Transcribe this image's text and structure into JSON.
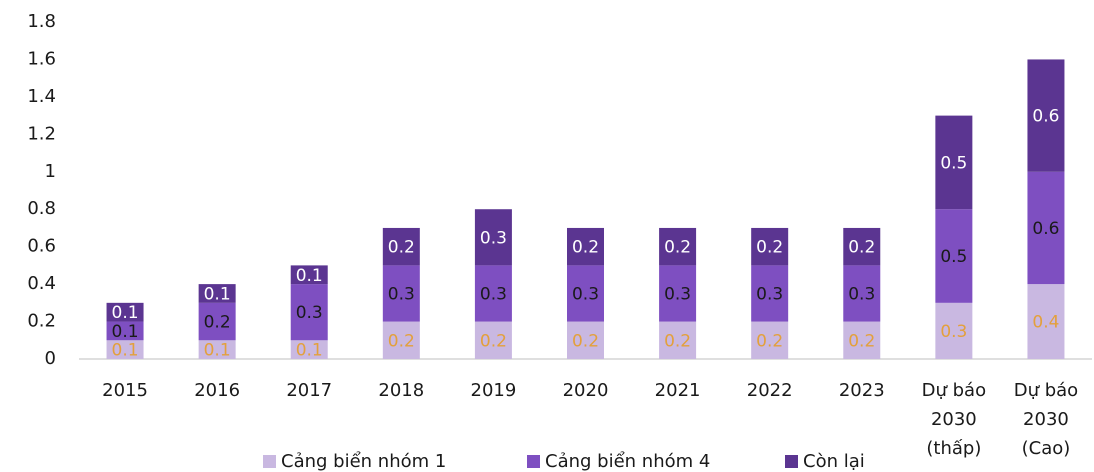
{
  "chart_data": {
    "type": "stacked_bar",
    "categories": [
      "2015",
      "2016",
      "2017",
      "2018",
      "2019",
      "2020",
      "2021",
      "2022",
      "2023",
      [
        "Dự báo",
        "2030",
        "(thấp)"
      ],
      [
        "Dự báo",
        "2030",
        "(Cao)"
      ]
    ],
    "series": [
      {
        "name": "Cảng biển nhóm 1",
        "color": "#c9b8e1",
        "label_color": "#e3a03c",
        "values": [
          0.1,
          0.1,
          0.1,
          0.2,
          0.2,
          0.2,
          0.2,
          0.2,
          0.2,
          0.3,
          0.4
        ]
      },
      {
        "name": "Cảng biển nhóm 4",
        "color": "#7e4fc1",
        "label_color": "#1a1a1a",
        "values": [
          0.1,
          0.2,
          0.3,
          0.3,
          0.3,
          0.3,
          0.3,
          0.3,
          0.3,
          0.5,
          0.6
        ]
      },
      {
        "name": "Còn lại",
        "color": "#5b3591",
        "label_color": "#ffffff",
        "values": [
          0.1,
          0.1,
          0.1,
          0.2,
          0.3,
          0.2,
          0.2,
          0.2,
          0.2,
          0.5,
          0.6
        ]
      }
    ],
    "ylim": [
      0,
      1.8
    ],
    "yticks": [
      0,
      0.2,
      0.4,
      0.6,
      0.8,
      1,
      1.2,
      1.4,
      1.6,
      1.8
    ],
    "grid": false,
    "legend": "bottom"
  }
}
